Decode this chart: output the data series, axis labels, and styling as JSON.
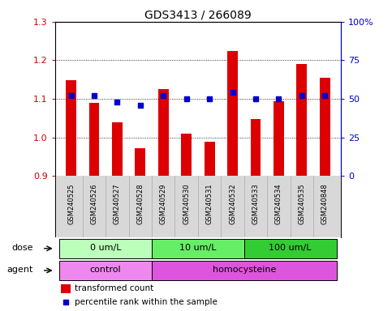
{
  "title": "GDS3413 / 266089",
  "samples": [
    "GSM240525",
    "GSM240526",
    "GSM240527",
    "GSM240528",
    "GSM240529",
    "GSM240530",
    "GSM240531",
    "GSM240532",
    "GSM240533",
    "GSM240534",
    "GSM240535",
    "GSM240848"
  ],
  "transformed_count": [
    1.148,
    1.09,
    1.038,
    0.972,
    1.125,
    1.01,
    0.988,
    1.225,
    1.048,
    1.093,
    1.19,
    1.155
  ],
  "percentile_rank": [
    52,
    52,
    48,
    46,
    52,
    50,
    50,
    54,
    50,
    50,
    52,
    52
  ],
  "bar_color": "#dd0000",
  "dot_color": "#0000cc",
  "ylim": [
    0.9,
    1.3
  ],
  "yticks_left": [
    0.9,
    1.0,
    1.1,
    1.2,
    1.3
  ],
  "yticks_right": [
    0,
    25,
    50,
    75,
    100
  ],
  "ylabel_left_color": "#cc0000",
  "ylabel_right_color": "#0000cc",
  "baseline": 0.9,
  "dose_groups": [
    {
      "label": "0 um/L",
      "start": 0,
      "end": 4,
      "color": "#bbffbb"
    },
    {
      "label": "10 um/L",
      "start": 4,
      "end": 8,
      "color": "#66ee66"
    },
    {
      "label": "100 um/L",
      "start": 8,
      "end": 12,
      "color": "#33cc33"
    }
  ],
  "agent_groups": [
    {
      "label": "control",
      "start": 0,
      "end": 4,
      "color": "#ee88ee"
    },
    {
      "label": "homocysteine",
      "start": 4,
      "end": 12,
      "color": "#dd55dd"
    }
  ],
  "dose_label": "dose",
  "agent_label": "agent",
  "legend_bar_label": "transformed count",
  "legend_dot_label": "percentile rank within the sample",
  "background_color": "#ffffff",
  "plot_bg_color": "#ffffff",
  "names_bg_color": "#d8d8d8",
  "names_border_color": "#aaaaaa"
}
